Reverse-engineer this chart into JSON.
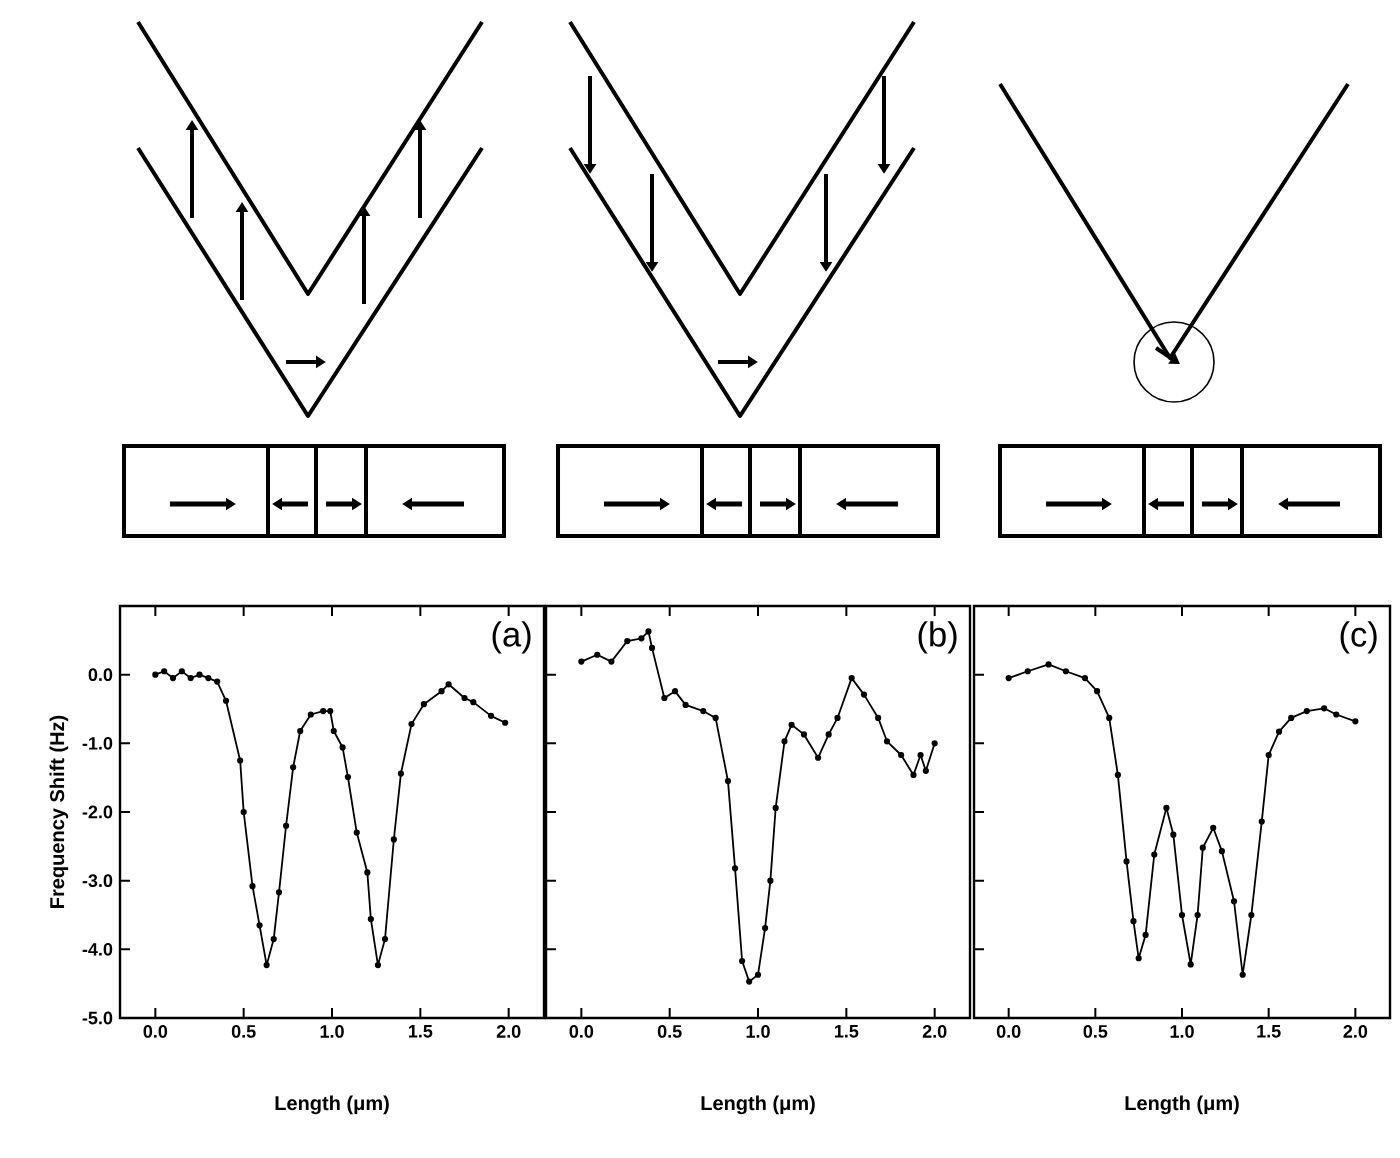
{
  "chart_data": [
    {
      "type": "line",
      "xlabel": "Length (μm)",
      "ylabel": "Frequency Shift (Hz)",
      "annotations": [
        "(a)"
      ],
      "color": "#000000",
      "marker": "circle",
      "xlim": [
        -0.2,
        2.2
      ],
      "ylim": [
        -5,
        1
      ],
      "xticks": [
        {
          "value": 0,
          "label": "0.0"
        },
        {
          "value": 0.5,
          "label": "0.5"
        },
        {
          "value": 1,
          "label": "1.0"
        },
        {
          "value": 1.5,
          "label": "1.5"
        },
        {
          "value": 2,
          "label": "2.0"
        }
      ],
      "yticks": [
        {
          "value": 0,
          "label": "0.0"
        },
        {
          "value": -1,
          "label": "-1.0"
        },
        {
          "value": -2,
          "label": "-2.0"
        },
        {
          "value": -3,
          "label": "-3.0"
        },
        {
          "value": -4,
          "label": "-4.0"
        },
        {
          "value": -5,
          "label": "-5.0"
        }
      ],
      "x": [
        0.0,
        0.05,
        0.1,
        0.15,
        0.2,
        0.25,
        0.3,
        0.35,
        0.4,
        0.48,
        0.5,
        0.55,
        0.59,
        0.63,
        0.67,
        0.7,
        0.74,
        0.78,
        0.82,
        0.88,
        0.95,
        0.99,
        1.01,
        1.06,
        1.09,
        1.14,
        1.2,
        1.22,
        1.26,
        1.3,
        1.35,
        1.39,
        1.45,
        1.52,
        1.62,
        1.66,
        1.75,
        1.8,
        1.9,
        1.98
      ],
      "values": [
        0.0,
        0.05,
        -0.05,
        0.05,
        -0.05,
        0.0,
        -0.05,
        -0.1,
        -0.38,
        -1.25,
        -2.0,
        -3.08,
        -3.65,
        -4.23,
        -3.85,
        -3.17,
        -2.2,
        -1.35,
        -0.82,
        -0.58,
        -0.53,
        -0.53,
        -0.82,
        -1.06,
        -1.49,
        -2.3,
        -2.88,
        -3.56,
        -4.23,
        -3.85,
        -2.4,
        -1.44,
        -0.72,
        -0.43,
        -0.24,
        -0.14,
        -0.34,
        -0.4,
        -0.6,
        -0.7
      ]
    },
    {
      "type": "line",
      "xlabel": "Length (μm)",
      "annotations": [
        "(b)"
      ],
      "color": "#000000",
      "marker": "circle",
      "xlim": [
        -0.2,
        2.2
      ],
      "ylim": [
        -5,
        1
      ],
      "tick_labels": "x",
      "xticks": [
        {
          "value": 0,
          "label": "0.0"
        },
        {
          "value": 0.5,
          "label": "0.5"
        },
        {
          "value": 1,
          "label": "1.0"
        },
        {
          "value": 1.5,
          "label": "1.5"
        },
        {
          "value": 2,
          "label": "2.0"
        }
      ],
      "yticks": [
        {
          "value": 0,
          "label": null
        },
        {
          "value": -1,
          "label": null
        },
        {
          "value": -2,
          "label": null
        },
        {
          "value": -3,
          "label": null
        },
        {
          "value": -4,
          "label": null
        },
        {
          "value": -5,
          "label": null
        }
      ],
      "x": [
        0.0,
        0.09,
        0.17,
        0.26,
        0.34,
        0.38,
        0.4,
        0.47,
        0.53,
        0.59,
        0.69,
        0.76,
        0.83,
        0.87,
        0.91,
        0.95,
        1.0,
        1.04,
        1.07,
        1.1,
        1.15,
        1.19,
        1.26,
        1.34,
        1.4,
        1.45,
        1.53,
        1.6,
        1.68,
        1.73,
        1.81,
        1.88,
        1.92,
        1.95,
        2.0
      ],
      "values": [
        0.19,
        0.29,
        0.19,
        0.49,
        0.53,
        0.63,
        0.39,
        -0.34,
        -0.24,
        -0.44,
        -0.53,
        -0.63,
        -1.55,
        -2.82,
        -4.17,
        -4.47,
        -4.37,
        -3.69,
        -3.0,
        -1.94,
        -0.97,
        -0.73,
        -0.87,
        -1.21,
        -0.87,
        -0.63,
        -0.05,
        -0.29,
        -0.63,
        -0.97,
        -1.17,
        -1.46,
        -1.17,
        -1.4,
        -1.0
      ]
    },
    {
      "type": "line",
      "xlabel": "Length (μm)",
      "annotations": [
        "(c)"
      ],
      "color": "#000000",
      "marker": "circle",
      "xlim": [
        -0.2,
        2.2
      ],
      "ylim": [
        -5,
        1
      ],
      "tick_labels": "x",
      "xticks": [
        {
          "value": 0,
          "label": "0.0"
        },
        {
          "value": 0.5,
          "label": "0.5"
        },
        {
          "value": 1,
          "label": "1.0"
        },
        {
          "value": 1.5,
          "label": "1.5"
        },
        {
          "value": 2,
          "label": "2.0"
        }
      ],
      "yticks": [
        {
          "value": 0,
          "label": null
        },
        {
          "value": -1,
          "label": null
        },
        {
          "value": -2,
          "label": null
        },
        {
          "value": -3,
          "label": null
        },
        {
          "value": -4,
          "label": null
        },
        {
          "value": -5,
          "label": null
        }
      ],
      "x": [
        0.0,
        0.11,
        0.23,
        0.33,
        0.44,
        0.51,
        0.58,
        0.63,
        0.68,
        0.72,
        0.75,
        0.79,
        0.84,
        0.91,
        0.95,
        1.0,
        1.05,
        1.09,
        1.12,
        1.18,
        1.23,
        1.3,
        1.35,
        1.4,
        1.46,
        1.5,
        1.56,
        1.63,
        1.72,
        1.82,
        1.89,
        2.0
      ],
      "values": [
        -0.05,
        0.05,
        0.15,
        0.05,
        -0.05,
        -0.24,
        -0.63,
        -1.46,
        -2.72,
        -3.59,
        -4.13,
        -3.79,
        -2.62,
        -1.94,
        -2.33,
        -3.5,
        -4.22,
        -3.5,
        -2.52,
        -2.23,
        -2.57,
        -3.3,
        -4.37,
        -3.5,
        -2.14,
        -1.17,
        -0.83,
        -0.63,
        -0.53,
        -0.49,
        -0.58,
        -0.68
      ]
    }
  ]
}
